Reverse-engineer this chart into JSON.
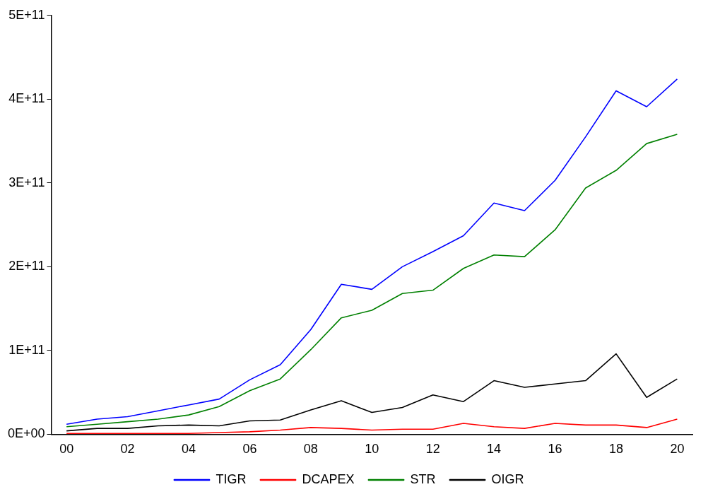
{
  "chart_data": {
    "type": "line",
    "categories": [
      "00",
      null,
      "02",
      null,
      "04",
      null,
      "06",
      null,
      "08",
      null,
      "10",
      null,
      "12",
      null,
      "14",
      null,
      "16",
      null,
      "18",
      null,
      "20"
    ],
    "series": [
      {
        "name": "TIGR",
        "color": "#0000ff",
        "values": [
          12000000000.0,
          18000000000.0,
          21000000000.0,
          28000000000.0,
          35000000000.0,
          42000000000.0,
          65000000000.0,
          83000000000.0,
          125000000000.0,
          179000000000.0,
          173000000000.0,
          200000000000.0,
          218000000000.0,
          237000000000.0,
          276000000000.0,
          267000000000.0,
          303000000000.0,
          355000000000.0,
          410000000000.0,
          391000000000.0,
          424000000000.0
        ]
      },
      {
        "name": "DCAPEX",
        "color": "#ff0000",
        "values": [
          1000000000.0,
          1000000000.0,
          1000000000.0,
          1000000000.0,
          1000000000.0,
          2000000000.0,
          3000000000.0,
          5000000000.0,
          8000000000.0,
          7000000000.0,
          5000000000.0,
          6000000000.0,
          6000000000.0,
          13000000000.0,
          9000000000.0,
          7000000000.0,
          13000000000.0,
          11000000000.0,
          11000000000.0,
          8000000000.0,
          18000000000.0
        ]
      },
      {
        "name": "STR",
        "color": "#008000",
        "values": [
          9000000000.0,
          12000000000.0,
          15000000000.0,
          18000000000.0,
          23000000000.0,
          33000000000.0,
          52000000000.0,
          66000000000.0,
          101000000000.0,
          139000000000.0,
          148000000000.0,
          168000000000.0,
          172000000000.0,
          198000000000.0,
          214000000000.0,
          212000000000.0,
          244000000000.0,
          294000000000.0,
          315000000000.0,
          347000000000.0,
          358000000000.0
        ]
      },
      {
        "name": "OIGR",
        "color": "#000000",
        "values": [
          4000000000.0,
          7000000000.0,
          7000000000.0,
          10000000000.0,
          11000000000.0,
          10000000000.0,
          16000000000.0,
          17000000000.0,
          29000000000.0,
          40000000000.0,
          26000000000.0,
          32000000000.0,
          47000000000.0,
          39000000000.0,
          64000000000.0,
          56000000000.0,
          60000000000.0,
          64000000000.0,
          96000000000.0,
          44000000000.0,
          66000000000.0
        ]
      }
    ],
    "ylim": [
      0,
      500000000000.0
    ],
    "yticks": [
      {
        "value": 0,
        "label": "0E+00"
      },
      {
        "value": 100000000000.0,
        "label": "1E+11"
      },
      {
        "value": 200000000000.0,
        "label": "2E+11"
      },
      {
        "value": 300000000000.0,
        "label": "3E+11"
      },
      {
        "value": 400000000000.0,
        "label": "4E+11"
      },
      {
        "value": 500000000000.0,
        "label": "5E+11"
      }
    ],
    "grid": false,
    "legend": "bottom",
    "marker": "none",
    "line_style": "solid"
  }
}
